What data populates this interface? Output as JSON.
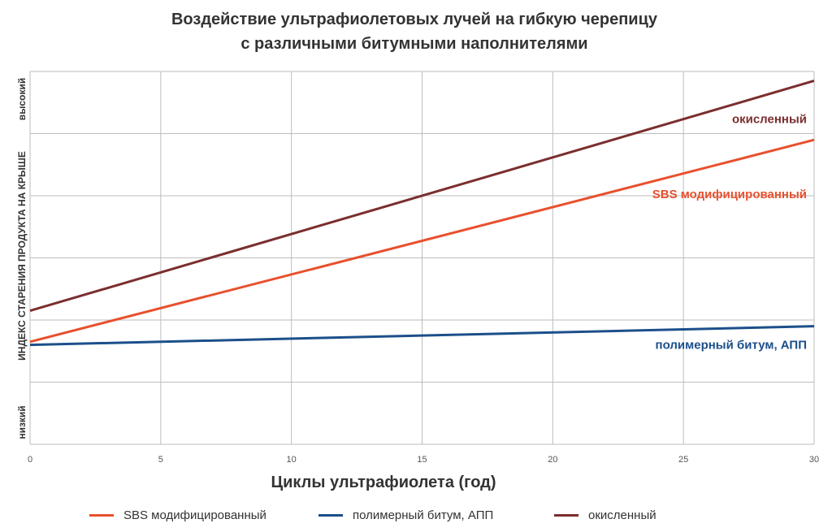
{
  "chart_data": {
    "type": "line",
    "title_lines": [
      "Воздействие ультрафиолетовых лучей на гибкую черепицу",
      "с различными битумными наполнителями"
    ],
    "xlabel": "Циклы ультрафиолета (год)",
    "ylabel": "ИНДЕКС СТАРЕНИЯ ПРОДУКТА НА КРЫШЕ",
    "y_high_label": "высокий",
    "y_low_label": "низкий",
    "x_ticks": [
      "0",
      "5",
      "10",
      "15",
      "20",
      "25",
      "30"
    ],
    "xlim": [
      0,
      30
    ],
    "ylim": [
      0,
      6
    ],
    "grid": true,
    "legend_position": "bottom",
    "x": [
      0,
      30
    ],
    "series": [
      {
        "name": "SBS модифицированный",
        "color": "#E8502D",
        "values": [
          1.65,
          4.9
        ],
        "inline_label": "SBS модифицированный"
      },
      {
        "name": "полимерный битум, АПП",
        "color": "#1B4F8A",
        "values": [
          1.6,
          1.9
        ],
        "inline_label": "полимерный битум, АПП"
      },
      {
        "name": "окисленный",
        "color": "#7B2E2E",
        "values": [
          2.15,
          5.85
        ],
        "inline_label": "окисленный"
      }
    ]
  }
}
